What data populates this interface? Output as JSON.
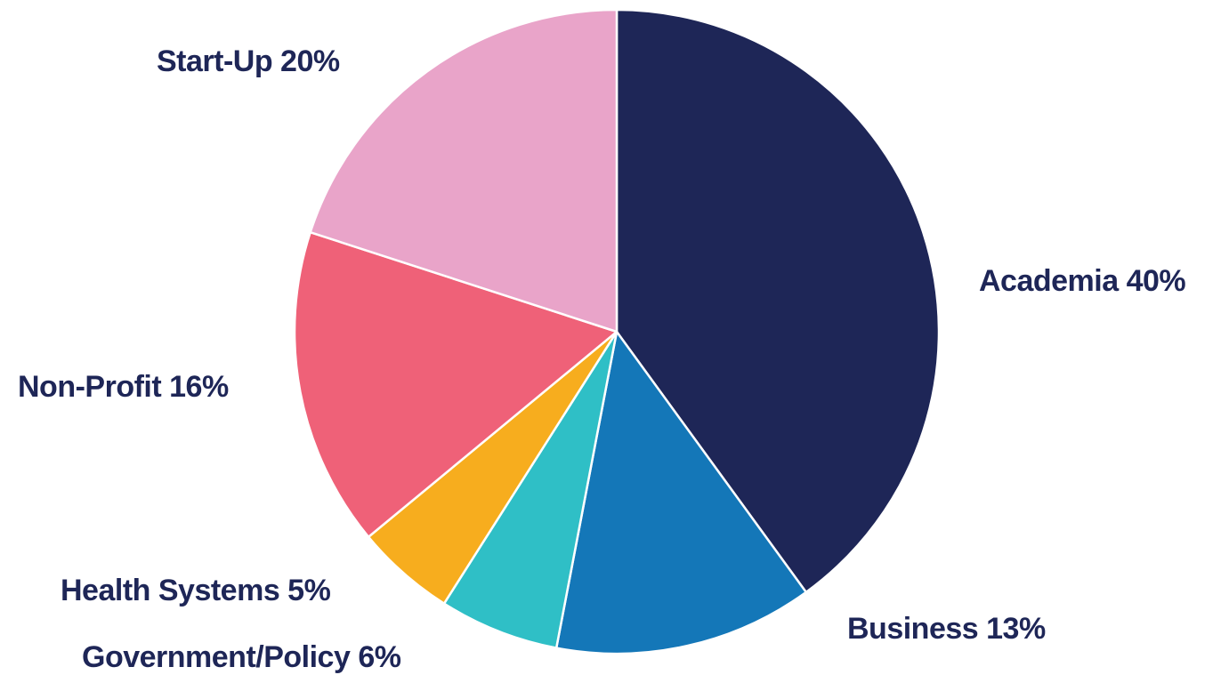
{
  "chart_data": {
    "type": "pie",
    "title": "",
    "start_angle_deg": 0,
    "direction": "clockwise",
    "label_color": "#1e2657",
    "slices": [
      {
        "label": "Academia",
        "value": 40,
        "value_label": "40%",
        "color": "#1e2657"
      },
      {
        "label": "Business",
        "value": 13,
        "value_label": "13%",
        "color": "#1477b8"
      },
      {
        "label": "Government/Policy",
        "value": 6,
        "value_label": "6%",
        "color": "#2fbfc6"
      },
      {
        "label": "Health Systems",
        "value": 5,
        "value_label": "5%",
        "color": "#f7ad1e"
      },
      {
        "label": "Non-Profit",
        "value": 16,
        "value_label": "16%",
        "color": "#ef6178"
      },
      {
        "label": "Start-Up",
        "value": 20,
        "value_label": "20%",
        "color": "#e9a4c9"
      }
    ]
  }
}
